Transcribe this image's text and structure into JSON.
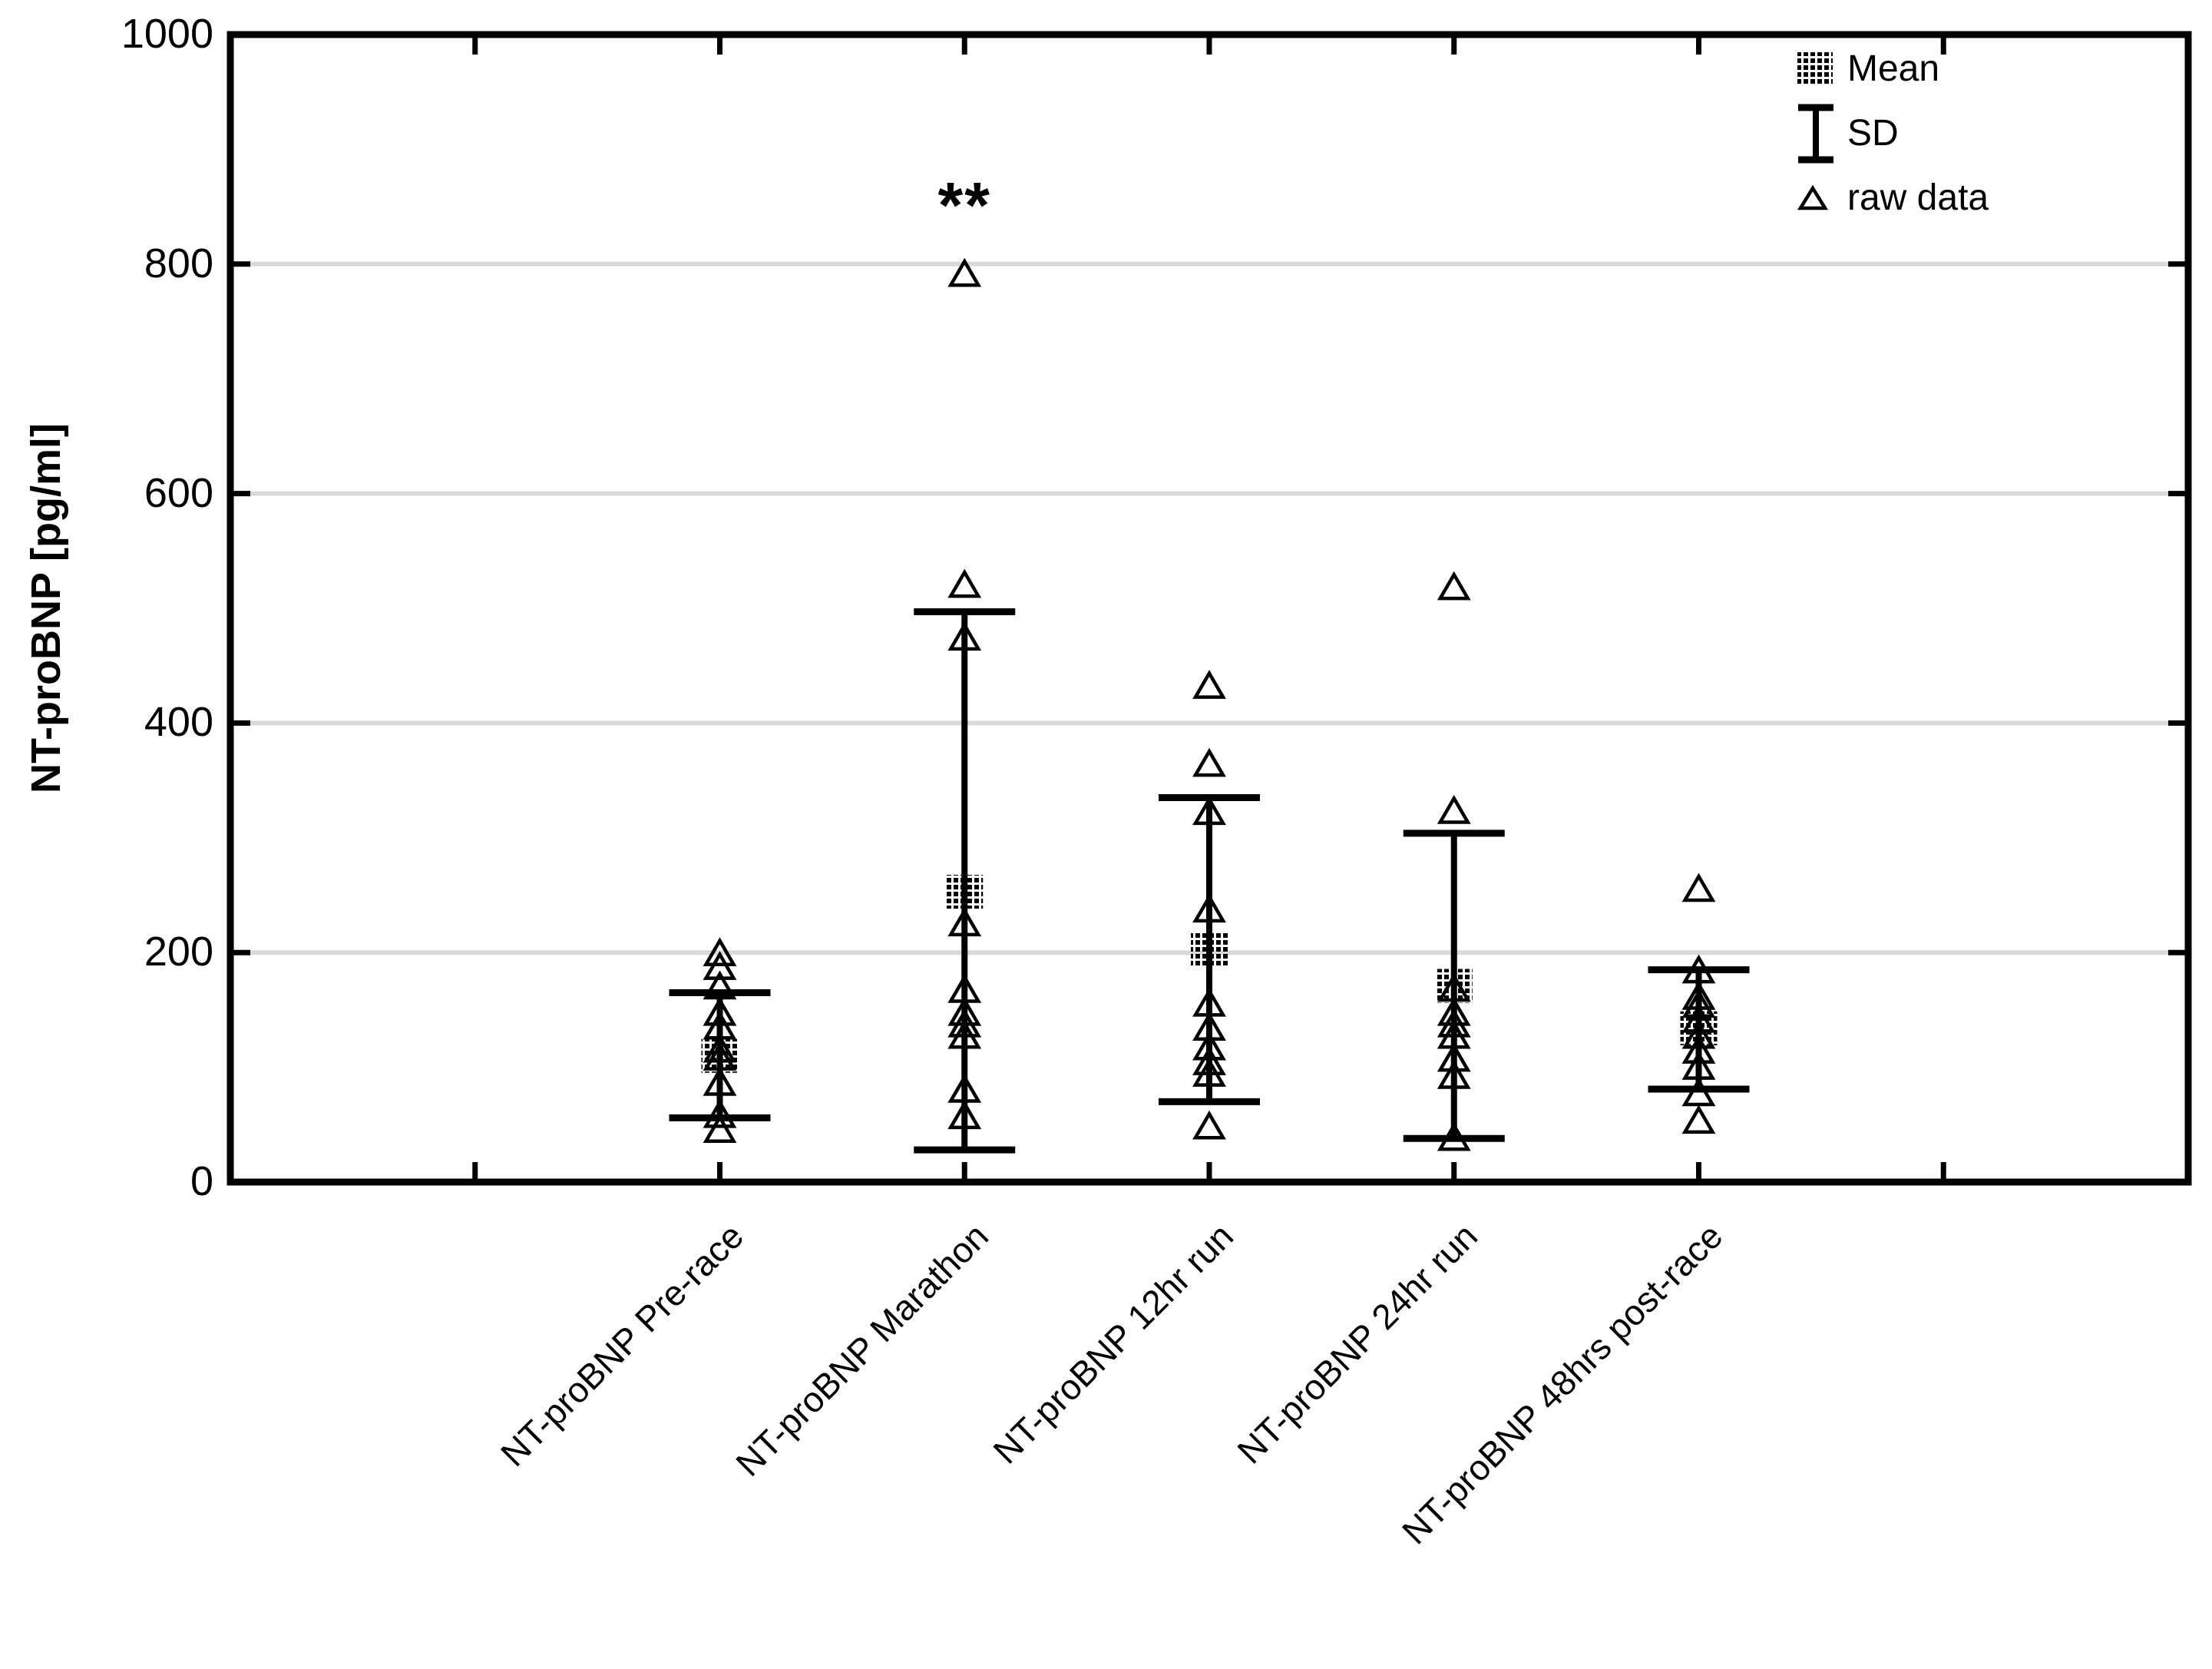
{
  "chart_data": {
    "type": "scatter",
    "title": "",
    "xlabel": "",
    "ylabel": "NT-proBNP [pg/ml]",
    "ylim": [
      0,
      1000
    ],
    "yticks": [
      0,
      200,
      400,
      600,
      800,
      1000
    ],
    "grid": "horizontal-light-gray",
    "legend": {
      "position": "top-right-inside",
      "items": [
        {
          "marker": "patterned-square",
          "label": "Mean"
        },
        {
          "marker": "error-bar",
          "label": "SD"
        },
        {
          "marker": "open-triangle",
          "label": "raw data"
        }
      ]
    },
    "annotation": {
      "text": "**",
      "category_index": 1,
      "y": 860
    },
    "categories": [
      {
        "label": "NT-proBNP Pre-race",
        "mean": 110,
        "sd_top": 165,
        "sd_bottom": 56,
        "raw": [
          199,
          187,
          170,
          147,
          135,
          115,
          108,
          86,
          58,
          45
        ]
      },
      {
        "label": "NT-proBNP Marathon",
        "mean": 253,
        "sd_top": 497,
        "sd_bottom": 28,
        "raw": [
          791,
          520,
          474,
          225,
          167,
          147,
          137,
          127,
          80,
          57
        ]
      },
      {
        "label": "NT-proBNP 12hr run",
        "mean": 203,
        "sd_top": 335,
        "sd_bottom": 70,
        "raw": [
          432,
          364,
          322,
          237,
          155,
          134,
          117,
          104,
          94,
          48
        ]
      },
      {
        "label": "NT-proBNP 24hr run",
        "mean": 171,
        "sd_top": 304,
        "sd_bottom": 38,
        "raw": [
          518,
          323,
          168,
          147,
          137,
          127,
          107,
          92,
          38
        ]
      },
      {
        "label": "NT-proBNP 48hrs post-race",
        "mean": 134,
        "sd_top": 185,
        "sd_bottom": 81,
        "raw": [
          255,
          184,
          161,
          154,
          141,
          127,
          114,
          100,
          77,
          53
        ]
      }
    ]
  },
  "colors": {
    "foreground": "#000000",
    "gridline": "#d9d9d9",
    "background": "#ffffff"
  }
}
